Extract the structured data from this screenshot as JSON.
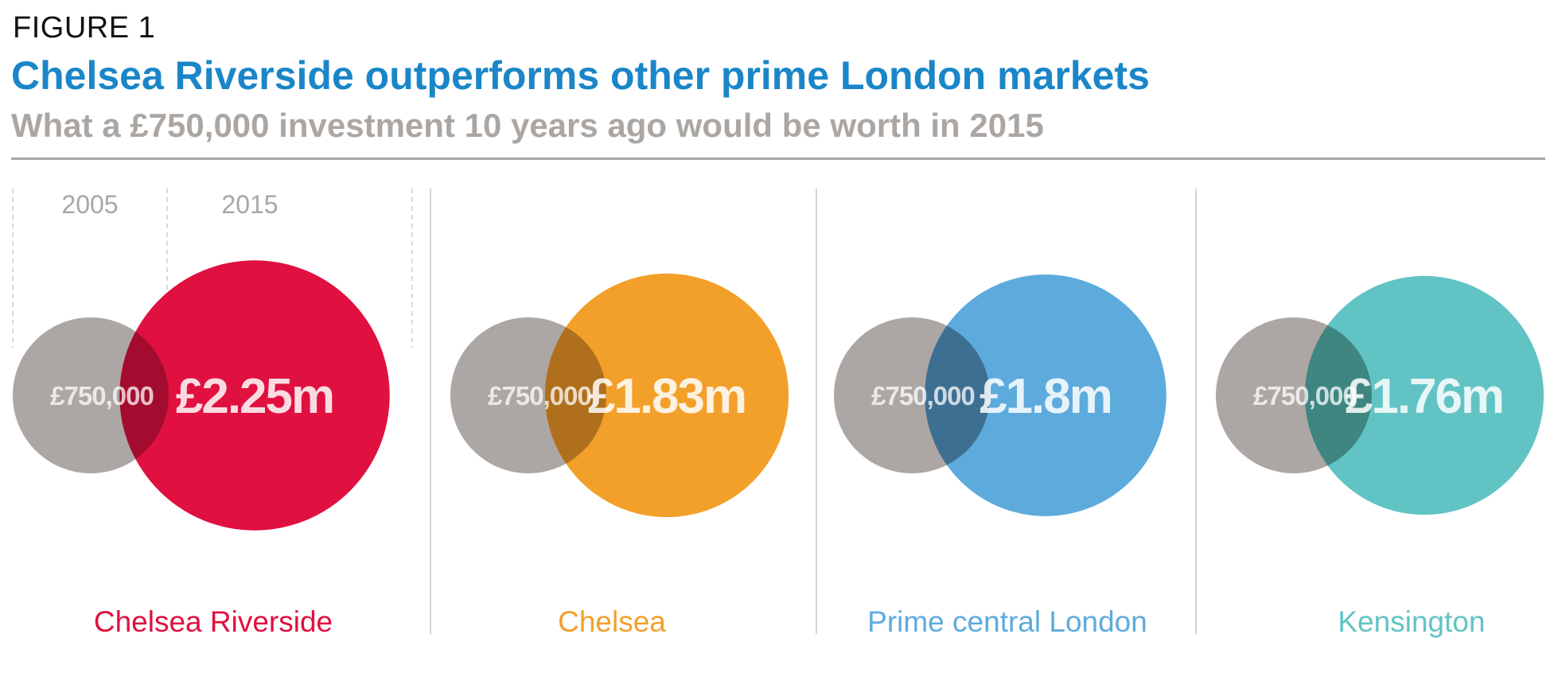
{
  "figure_label": "FIGURE 1",
  "title": "Chelsea Riverside outperforms other prime London markets",
  "subtitle": "What a £750,000 investment 10 years ago would be worth in 2015",
  "colors": {
    "title": "#1a86c8",
    "subtitle": "#aba6a2",
    "base_circle": "#9e9894"
  },
  "chart_data": {
    "type": "bubble",
    "title": "Chelsea Riverside outperforms other prime London markets",
    "subtitle": "What a £750,000 investment 10 years ago would be worth in 2015",
    "legend": {
      "start_year": "2005",
      "end_year": "2015"
    },
    "base_value": 0.75,
    "base_label": "£750,000",
    "unit": "£m",
    "series": [
      {
        "name": "Chelsea Riverside",
        "value_2005": 0.75,
        "value_2015": 2.25,
        "label_2015": "£2.25m",
        "color": "#e01040",
        "overlap_color": "#a30c2e"
      },
      {
        "name": "Chelsea",
        "value_2005": 0.75,
        "value_2015": 1.83,
        "label_2015": "£1.83m",
        "color": "#f2a02a",
        "overlap_color": "#b06f1c"
      },
      {
        "name": "Prime central London",
        "value_2005": 0.75,
        "value_2015": 1.8,
        "label_2015": "£1.8m",
        "color": "#5dabdc",
        "overlap_color": "#3d6f92"
      },
      {
        "name": "Kensington",
        "value_2005": 0.75,
        "value_2015": 1.76,
        "label_2015": "£1.76m",
        "color": "#62c3c4",
        "overlap_color": "#3f8580"
      }
    ]
  }
}
